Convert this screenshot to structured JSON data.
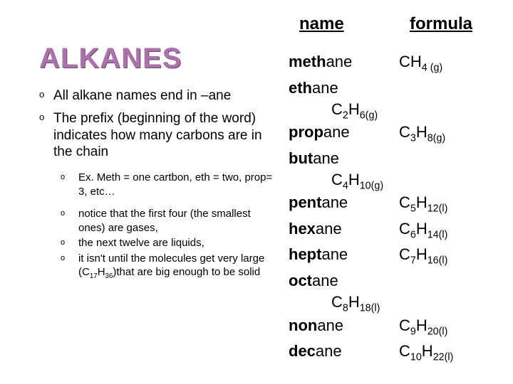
{
  "headers": {
    "name": "name",
    "formula": "formula"
  },
  "title": "ALKANES",
  "bullets": {
    "main1": "All alkane names end in –ane",
    "main2": "The prefix (beginning of the word) indicates how many carbons are in the chain",
    "sub1": "Ex. Meth = one cartbon, eth = two, prop= 3, etc…",
    "sub2": "notice that the first four (the smallest ones) are gases,",
    "sub3": "the next twelve are liquids,",
    "sub4_pre": "it isn't until the molecules get very large (C",
    "sub4_n1": "17",
    "sub4_mid": "H",
    "sub4_n2": "36",
    "sub4_post": ")that are big enough to be solid"
  },
  "compounds": [
    {
      "prefix": "meth",
      "suffix": "ane",
      "formulaRow": false,
      "c": 1,
      "h": 4,
      "state": "(g)",
      "showC": false
    },
    {
      "prefix": "eth",
      "suffix": "ane",
      "formulaRow": true,
      "c": 2,
      "h": 6,
      "state": "(g)",
      "showC": true
    },
    {
      "prefix": "prop",
      "suffix": "ane",
      "formulaRow": false,
      "c": 3,
      "h": 8,
      "state": "(g)",
      "showC": true
    },
    {
      "prefix": "but",
      "suffix": "ane",
      "formulaRow": true,
      "c": 4,
      "h": 10,
      "state": "(g)",
      "showC": true
    },
    {
      "prefix": "pent",
      "suffix": "ane",
      "formulaRow": false,
      "c": 5,
      "h": 12,
      "state": "(l)",
      "showC": true
    },
    {
      "prefix": "hex",
      "suffix": "ane",
      "formulaRow": false,
      "c": 6,
      "h": 14,
      "state": "(l)",
      "showC": true
    },
    {
      "prefix": "hept",
      "suffix": "ane",
      "formulaRow": false,
      "c": 7,
      "h": 16,
      "state": "(l)",
      "showC": true
    },
    {
      "prefix": "oct",
      "suffix": "ane",
      "formulaRow": true,
      "c": 8,
      "h": 18,
      "state": "(l)",
      "showC": true
    },
    {
      "prefix": "non",
      "suffix": "ane",
      "formulaRow": false,
      "c": 9,
      "h": 20,
      "state": "(l)",
      "showC": true
    },
    {
      "prefix": "dec",
      "suffix": "ane",
      "formulaRow": false,
      "c": 10,
      "h": 22,
      "state": "(l)",
      "showC": true
    }
  ],
  "style": {
    "background": "#ffffff",
    "titleColor": "#b070b0",
    "textColor": "#000000",
    "titleFontSize": 40,
    "bodyFontSize": 19,
    "subFontSize": 15,
    "tableFontSize": 22
  }
}
